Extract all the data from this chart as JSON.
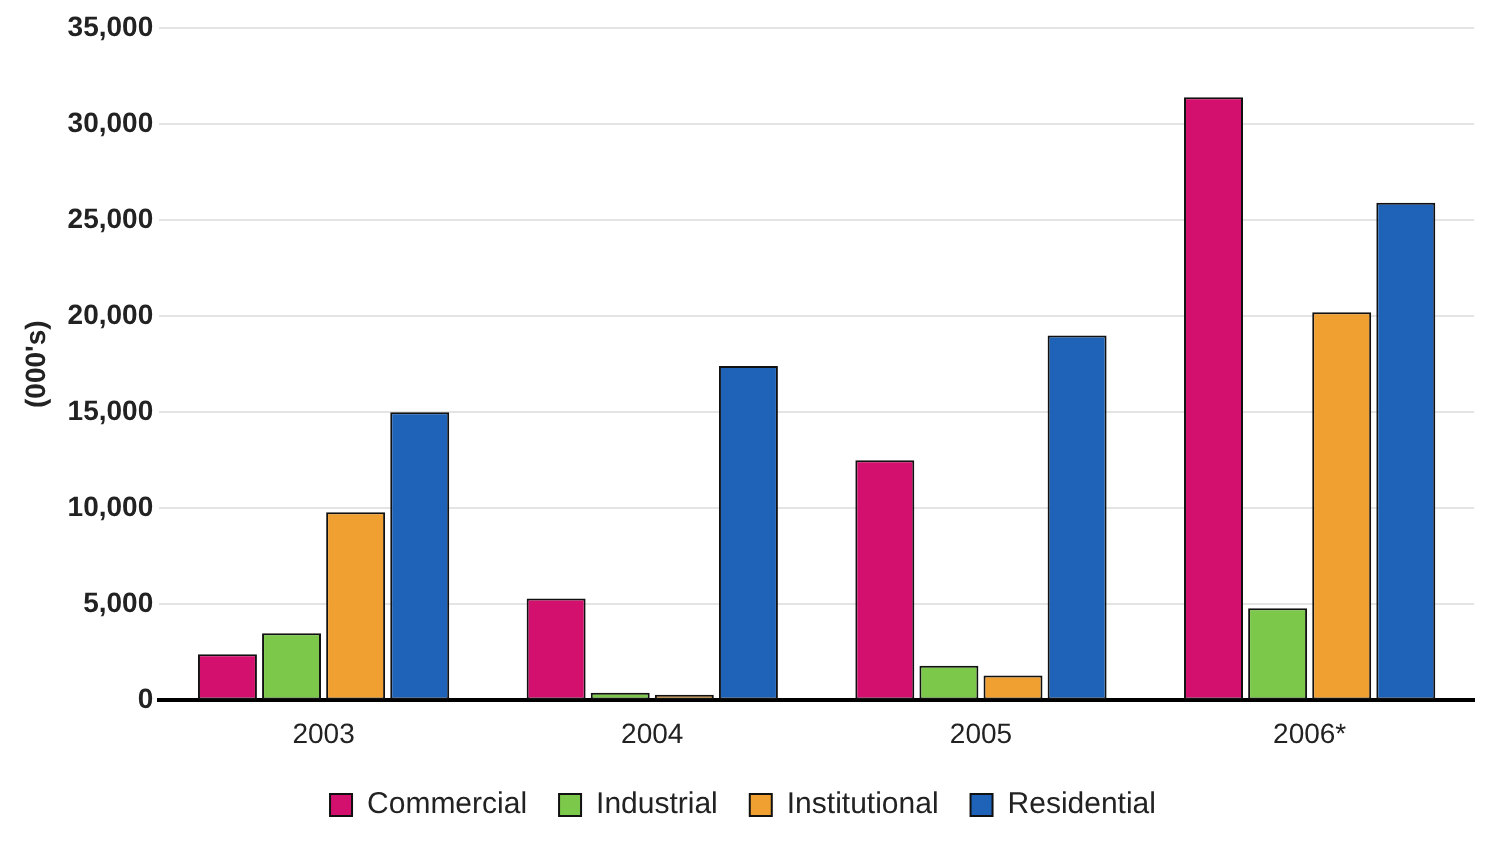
{
  "chart_data": {
    "type": "bar",
    "ylabel": "(000's)",
    "categories": [
      "2003",
      "2004",
      "2005",
      "2006*"
    ],
    "series": [
      {
        "name": "Commercial",
        "color": "#d4106e",
        "values": [
          2400,
          5300,
          12500,
          31400
        ]
      },
      {
        "name": "Industrial",
        "color": "#7cc84a",
        "values": [
          3500,
          400,
          1800,
          4800
        ]
      },
      {
        "name": "Institutional",
        "color": "#f0a030",
        "values": [
          9800,
          300,
          1300,
          20200
        ]
      },
      {
        "name": "Residential",
        "color": "#1f63b8",
        "values": [
          15000,
          17400,
          19000,
          25900
        ]
      }
    ],
    "ylim": [
      0,
      35000
    ],
    "yticks": [
      {
        "value": 0,
        "label": "0"
      },
      {
        "value": 5000,
        "label": "5,000"
      },
      {
        "value": 10000,
        "label": "10,000"
      },
      {
        "value": 15000,
        "label": "15,000"
      },
      {
        "value": 20000,
        "label": "20,000"
      },
      {
        "value": 25000,
        "label": "25,000"
      },
      {
        "value": 30000,
        "label": "30,000"
      },
      {
        "value": 35000,
        "label": "35,000"
      }
    ],
    "grid": "y",
    "legend": "bottom"
  }
}
